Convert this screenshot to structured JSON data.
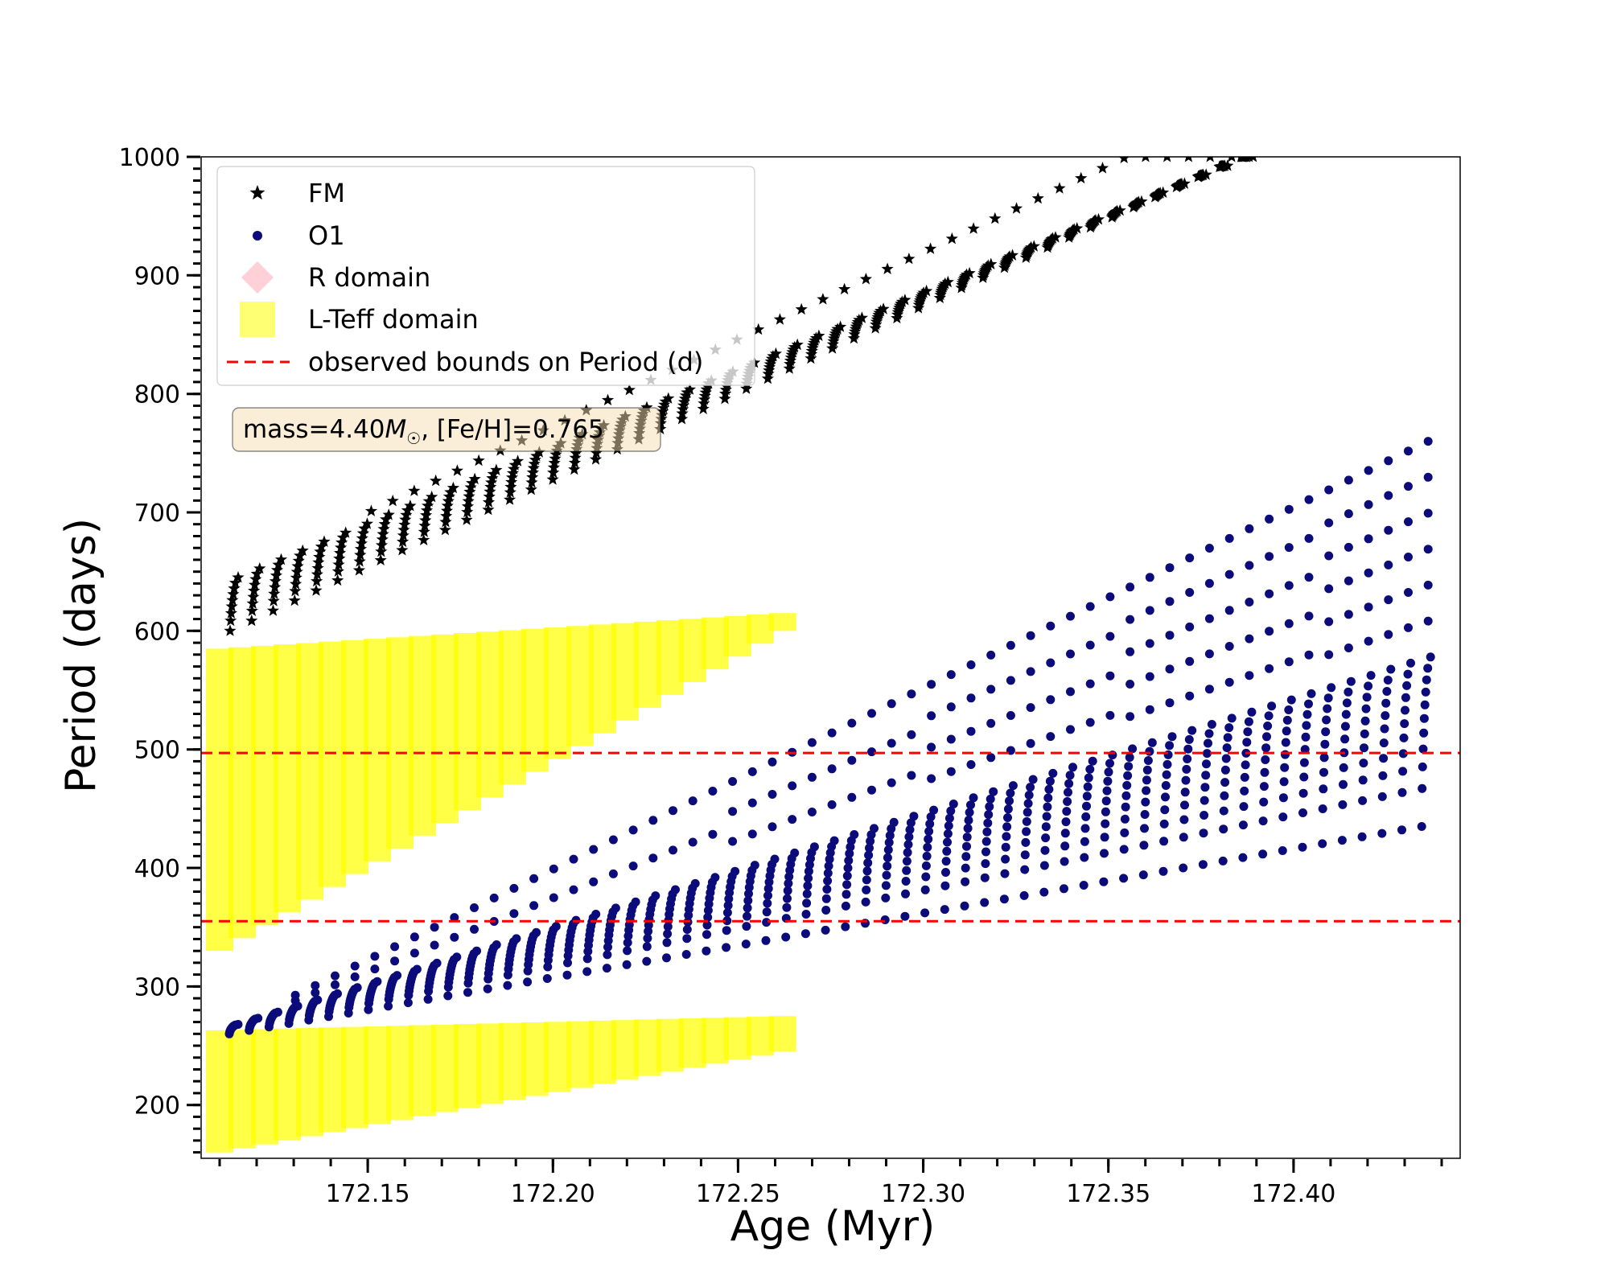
{
  "chart_data": {
    "type": "scatter",
    "title": "",
    "xlabel": "Age (Myr)",
    "ylabel": "Period (days)",
    "xlim": [
      172.105,
      172.445
    ],
    "ylim": [
      155,
      1000
    ],
    "x_ticks": [
      172.15,
      172.2,
      172.25,
      172.3,
      172.35,
      172.4
    ],
    "x_tick_labels": [
      "172.15",
      "172.20",
      "172.25",
      "172.30",
      "172.35",
      "172.40"
    ],
    "y_ticks": [
      200,
      300,
      400,
      500,
      600,
      700,
      800,
      900,
      1000
    ],
    "y_tick_labels": [
      "200",
      "300",
      "400",
      "500",
      "600",
      "700",
      "800",
      "900",
      "1000"
    ],
    "grid": false,
    "legend_position": "top-left",
    "legend": [
      {
        "label": "FM",
        "marker": "star",
        "color": "#000000"
      },
      {
        "label": "O1",
        "marker": "circle",
        "color": "#0b0b7a"
      },
      {
        "label": "R domain",
        "marker": "diamond",
        "color": "#ffc0cb"
      },
      {
        "label": "L-Teff domain",
        "marker": "square",
        "color": "#ffff00"
      },
      {
        "label": "observed bounds on Period (d)",
        "marker": "dashed-line",
        "color": "#ff0000"
      }
    ],
    "annotation": {
      "prefix": "mass=4.40",
      "mass_symbol": "M",
      "sun_symbol": "☉",
      "suffix": ", [Fe/H]=0.765"
    },
    "hlines": [
      {
        "y": 497,
        "style": "dashed",
        "color": "#ff0000"
      },
      {
        "y": 355,
        "style": "dashed",
        "color": "#ff0000"
      }
    ],
    "series": [
      {
        "name": "FM",
        "marker": "star",
        "color": "#000000",
        "pulse_count": 48,
        "x_start": 172.115,
        "x_end": 172.388,
        "y_low_start": 600,
        "y_low_end": 1000,
        "y_high_start": 645,
        "y_high_end": 1000
      },
      {
        "name": "O1",
        "marker": "circle",
        "color": "#0b0b7a",
        "pulse_count": 61,
        "x_start": 172.115,
        "x_end": 172.437,
        "y_low_start": 260,
        "y_low_end": 435,
        "y_high_start": 268,
        "y_high_end": 578,
        "spike_top_start": 268,
        "spike_top_end": 760
      },
      {
        "name": "L-Teff domain",
        "marker": "square",
        "color": "#ffff00",
        "bands": [
          {
            "x_start": 172.11,
            "x_end": 172.262,
            "y_low_start": 330,
            "y_low_end": 600,
            "y_high_start": 585,
            "y_high_end": 615
          },
          {
            "x_start": 172.11,
            "x_end": 172.262,
            "y_low_start": 160,
            "y_low_end": 245,
            "y_high_start": 263,
            "y_high_end": 275
          }
        ]
      }
    ]
  }
}
